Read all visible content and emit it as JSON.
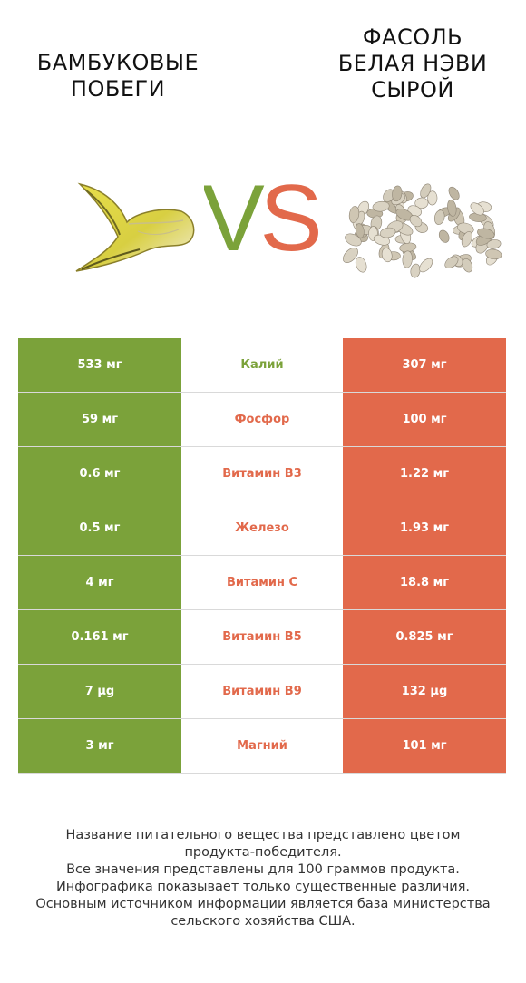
{
  "products": {
    "left": {
      "title_line1": "БАМБУКОВЫЕ",
      "title_line2": "ПОБЕГИ",
      "color": "#7ba23a"
    },
    "right": {
      "title_line1": "ФАСОЛЬ",
      "title_line2": "БЕЛАЯ НЭВИ",
      "title_line3": "СЫРОЙ",
      "color": "#e2694b"
    }
  },
  "vs": {
    "v": "V",
    "s": "S"
  },
  "rows": [
    {
      "left": "533 мг",
      "nutrient": "Калий",
      "right": "307 мг",
      "winner": "left"
    },
    {
      "left": "59 мг",
      "nutrient": "Фосфор",
      "right": "100 мг",
      "winner": "right"
    },
    {
      "left": "0.6 мг",
      "nutrient": "Витамин B3",
      "right": "1.22 мг",
      "winner": "right"
    },
    {
      "left": "0.5 мг",
      "nutrient": "Железо",
      "right": "1.93 мг",
      "winner": "right"
    },
    {
      "left": "4 мг",
      "nutrient": "Витамин C",
      "right": "18.8 мг",
      "winner": "right"
    },
    {
      "left": "0.161 мг",
      "nutrient": "Витамин B5",
      "right": "0.825 мг",
      "winner": "right"
    },
    {
      "left": "7 µg",
      "nutrient": "Витамин B9",
      "right": "132 µg",
      "winner": "right"
    },
    {
      "left": "3 мг",
      "nutrient": "Магний",
      "right": "101 мг",
      "winner": "right"
    }
  ],
  "footer": {
    "line1": "Название питательного вещества представлено цветом",
    "line2": "продукта-победителя.",
    "line3": "Все значения представлены для 100 граммов продукта.",
    "line4": "Инфографика показывает только существенные различия.",
    "line5": "Основным источником информации является база министерства",
    "line6": "сельского хозяйства США."
  }
}
